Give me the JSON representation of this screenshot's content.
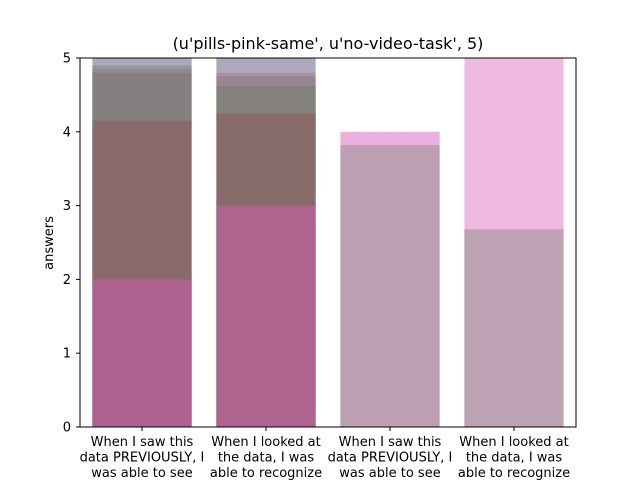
{
  "chart_data": {
    "type": "bar",
    "title": "(u'pills-pink-same', u'no-video-task', 5)",
    "xlabel": "",
    "ylabel": "answers",
    "ylim": [
      0,
      5
    ],
    "yticks": [
      "0",
      "1",
      "2",
      "3",
      "4",
      "5"
    ],
    "grid": false,
    "categories": [
      "When I saw this data PREVIOUSLY, I was able to see",
      "When I looked at the data, I was able to recognize",
      "When I saw this data PREVIOUSLY, I was able to see",
      "When I looked at the data, I was able to recognize"
    ],
    "category_lines": [
      [
        "When I saw this",
        "data PREVIOUSLY, I",
        "was able to see"
      ],
      [
        "When I looked at",
        "the data, I was",
        "able to recognize"
      ],
      [
        "When I saw this",
        "data PREVIOUSLY, I",
        "was able to see"
      ],
      [
        "When I looked at",
        "the data, I was",
        "able to recognize"
      ]
    ],
    "overlay_bars": [
      [
        {
          "value": 5,
          "color": "#6a5f8c",
          "opacity": 0.55
        },
        {
          "value": 4.9,
          "color": "#5f7f5f",
          "opacity": 0.35
        },
        {
          "value": 4.85,
          "color": "#8a6f6f",
          "opacity": 0.35
        },
        {
          "value": 4.8,
          "color": "#7a6f70",
          "opacity": 0.4
        },
        {
          "value": 4.15,
          "color": "#8b5a5a",
          "opacity": 0.55
        },
        {
          "value": 2.0,
          "color": "#c05fa0",
          "opacity": 0.7
        }
      ],
      [
        {
          "value": 5,
          "color": "#6a5f8c",
          "opacity": 0.55
        },
        {
          "value": 4.8,
          "color": "#9a6f7f",
          "opacity": 0.4
        },
        {
          "value": 4.75,
          "color": "#7a6f60",
          "opacity": 0.35
        },
        {
          "value": 4.62,
          "color": "#5f7f5f",
          "opacity": 0.35
        },
        {
          "value": 4.25,
          "color": "#8b5a5a",
          "opacity": 0.55
        },
        {
          "value": 3.0,
          "color": "#c05fa0",
          "opacity": 0.7
        }
      ],
      [
        {
          "value": 4.0,
          "color": "#e38fcf",
          "opacity": 0.7
        },
        {
          "value": 3.82,
          "color": "#a89aa0",
          "opacity": 0.7
        }
      ],
      [
        {
          "value": 5.0,
          "color": "#e38fcf",
          "opacity": 0.62
        },
        {
          "value": 2.68,
          "color": "#a89aa0",
          "opacity": 0.7
        }
      ]
    ]
  }
}
